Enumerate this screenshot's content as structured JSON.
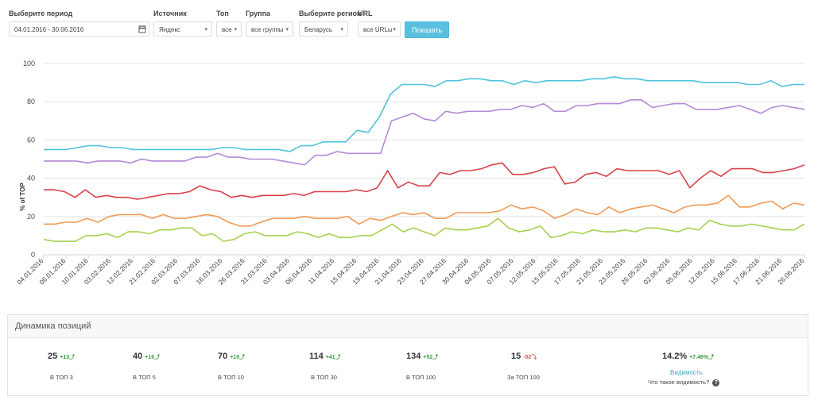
{
  "filters": {
    "period": {
      "label": "Выберите период",
      "value": "04.01.2016 - 30.06.2016"
    },
    "source": {
      "label": "Источник",
      "value": "Яндекс"
    },
    "top": {
      "label": "Топ",
      "value": "все"
    },
    "group": {
      "label": "Группа",
      "value": "все группы"
    },
    "region": {
      "label": "Выберите регион",
      "value": "Беларусь"
    },
    "url": {
      "label": "URL",
      "value": "все URLы"
    },
    "show_button": "Показать",
    "calendar_icon": "calendar-icon",
    "caret_icon": "chevron-down-icon"
  },
  "chart_data": {
    "type": "line",
    "ylabel": "% of TOP",
    "ylim": [
      0,
      100
    ],
    "yticks": [
      0,
      20,
      40,
      60,
      80,
      100
    ],
    "grid": true,
    "x_tick_labels": [
      "04.01.2016",
      "06.01.2016",
      "10.01.2016",
      "03.02.2016",
      "12.02.2016",
      "21.02.2016",
      "02.03.2016",
      "07.03.2016",
      "16.03.2016",
      "26.03.2016",
      "31.03.2016",
      "03.04.2016",
      "06.04.2016",
      "11.04.2016",
      "15.04.2016",
      "19.04.2016",
      "21.04.2016",
      "23.04.2016",
      "27.04.2016",
      "30.04.2016",
      "04.05.2016",
      "07.05.2016",
      "12.05.2016",
      "15.05.2016",
      "17.05.2016",
      "21.05.2016",
      "23.05.2016",
      "26.05.2016",
      "02.06.2016",
      "05.06.2016",
      "12.06.2016",
      "15.06.2016",
      "17.06.2016",
      "21.06.2016",
      "26.06.2016"
    ],
    "series": [
      {
        "color": "#4fc3dc",
        "values": [
          55,
          55,
          55,
          56,
          57,
          57,
          56,
          56,
          55,
          55,
          55,
          55,
          55,
          55,
          55,
          55,
          56,
          56,
          55,
          55,
          55,
          55,
          54,
          57,
          57,
          59,
          59,
          59,
          65,
          64,
          72,
          84,
          89,
          89,
          89,
          88,
          91,
          91,
          92,
          92,
          91,
          91,
          89,
          91,
          90,
          91,
          91,
          91,
          91,
          92,
          92,
          93,
          92,
          92,
          91,
          91,
          91,
          91,
          91,
          90,
          90,
          90,
          90,
          89,
          89,
          91,
          88,
          89,
          89
        ]
      },
      {
        "color": "#b48ad8",
        "values": [
          49,
          49,
          49,
          49,
          48,
          49,
          49,
          49,
          48,
          50,
          49,
          49,
          49,
          49,
          51,
          51,
          53,
          51,
          51,
          50,
          50,
          50,
          49,
          48,
          47,
          52,
          52,
          54,
          53,
          53,
          53,
          53,
          70,
          72,
          74,
          71,
          70,
          75,
          74,
          75,
          75,
          75,
          76,
          76,
          78,
          77,
          79,
          75,
          75,
          78,
          78,
          79,
          79,
          79,
          81,
          81,
          77,
          78,
          79,
          79,
          76,
          76,
          76,
          77,
          78,
          76,
          74,
          77,
          78,
          77,
          76
        ]
      },
      {
        "color": "#d9414a",
        "values": [
          34,
          34,
          33,
          30,
          34,
          30,
          31,
          30,
          30,
          29,
          30,
          31,
          32,
          32,
          33,
          36,
          34,
          33,
          30,
          31,
          30,
          31,
          31,
          31,
          32,
          31,
          33,
          33,
          33,
          33,
          34,
          33,
          35,
          44,
          35,
          38,
          36,
          36,
          43,
          42,
          44,
          44,
          45,
          47,
          48,
          42,
          42,
          43,
          45,
          46,
          37,
          38,
          42,
          43,
          41,
          45,
          44,
          44,
          44,
          44,
          42,
          44,
          35,
          40,
          44,
          41,
          45,
          45,
          45,
          43,
          43,
          44,
          45,
          47
        ]
      },
      {
        "color": "#f29a55",
        "values": [
          16,
          16,
          17,
          17,
          19,
          17,
          20,
          21,
          21,
          21,
          19,
          21,
          19,
          19,
          20,
          21,
          20,
          17,
          15,
          15,
          17,
          19,
          19,
          19,
          20,
          19,
          19,
          19,
          20,
          16,
          19,
          18,
          20,
          22,
          21,
          22,
          19,
          19,
          22,
          22,
          22,
          22,
          23,
          26,
          24,
          25,
          23,
          19,
          21,
          24,
          22,
          21,
          25,
          22,
          24,
          25,
          26,
          24,
          22,
          25,
          26,
          26,
          27,
          31,
          25,
          25,
          27,
          28,
          24,
          27,
          26
        ]
      },
      {
        "color": "#a6d14e",
        "values": [
          8,
          7,
          7,
          7,
          10,
          10,
          11,
          9,
          12,
          12,
          11,
          13,
          13,
          14,
          14,
          10,
          11,
          7,
          8,
          11,
          12,
          10,
          10,
          10,
          12,
          11,
          9,
          11,
          9,
          9,
          10,
          10,
          13,
          16,
          12,
          14,
          12,
          10,
          14,
          13,
          13,
          14,
          15,
          19,
          14,
          12,
          13,
          15,
          9,
          10,
          12,
          11,
          13,
          12,
          12,
          13,
          12,
          14,
          14,
          13,
          12,
          14,
          13,
          18,
          16,
          15,
          15,
          16,
          15,
          14,
          13,
          13,
          16
        ]
      }
    ]
  },
  "positions": {
    "title": "Динамика позиций",
    "metrics": [
      {
        "value": "25",
        "delta": "+13",
        "delta_dir": "up",
        "label": "В ТОП 3"
      },
      {
        "value": "40",
        "delta": "+16",
        "delta_dir": "up",
        "label": "В ТОП 5"
      },
      {
        "value": "70",
        "delta": "+19",
        "delta_dir": "up",
        "label": "В ТОП 10"
      },
      {
        "value": "114",
        "delta": "+41",
        "delta_dir": "up",
        "label": "В ТОП 30"
      },
      {
        "value": "134",
        "delta": "+52",
        "delta_dir": "up",
        "label": "В ТОП 100"
      },
      {
        "value": "15",
        "delta": "-52",
        "delta_dir": "down",
        "label": "За ТОП 100"
      }
    ],
    "visibility": {
      "value": "14.2%",
      "delta": "+7.46%",
      "link": "Видимость",
      "question": "Что такое видимость?",
      "help_icon": "question-circle-icon"
    }
  }
}
